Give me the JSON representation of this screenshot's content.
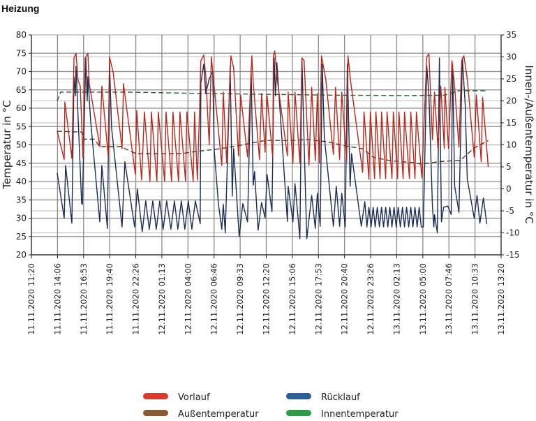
{
  "chart_data": {
    "type": "line",
    "title": "Heizung",
    "ylabel": "Temperatur in °C",
    "y2label": "Innen-/Außentemperatur in °C",
    "xunit": "hours since 11.11.2020 11:20",
    "xlim": [
      0,
      50
    ],
    "ylim": [
      20,
      80
    ],
    "y2lim": [
      -15,
      35
    ],
    "yticks": [
      "20",
      "25",
      "30",
      "35",
      "40",
      "45",
      "50",
      "55",
      "60",
      "65",
      "70",
      "75",
      "80"
    ],
    "y2ticks": [
      "-15",
      "-10",
      "-5",
      "0",
      "5",
      "10",
      "15",
      "20",
      "25",
      "30",
      "35"
    ],
    "xticks": [
      "11.11.2020 11:20",
      "11.11.2020 14:06",
      "11.11.2020 16:53",
      "11.11.2020 19:40",
      "11.11.2020 22:26",
      "12.11.2020 01:13",
      "12.11.2020 04:00",
      "12.11.2020 06:46",
      "12.11.2020 09:33",
      "12.11.2020 12:20",
      "12.11.2020 15:06",
      "12.11.2020 17:53",
      "12.11.2020 20:40",
      "12.11.2020 23:26",
      "13.11.2020 02:13",
      "13.11.2020 05:00",
      "13.11.2020 07:46",
      "13.11.2020 10:33",
      "13.11.2020 13:20"
    ],
    "grid": true,
    "legend_position": "bottom",
    "series": [
      {
        "name": "Vorlauf",
        "axis": "left",
        "color": "#b8291c",
        "legend_color": "#e0362b",
        "dashed": false,
        "points": [
          [
            2.75,
            53.7
          ],
          [
            3.49,
            46
          ],
          [
            3.56,
            61.7
          ],
          [
            4.31,
            46.3
          ],
          [
            4.53,
            73.7
          ],
          [
            4.75,
            75
          ],
          [
            4.97,
            67.6
          ],
          [
            5.2,
            66
          ],
          [
            5.49,
            46.3
          ],
          [
            5.72,
            73.7
          ],
          [
            6.01,
            75
          ],
          [
            6.16,
            66.7
          ],
          [
            7.28,
            49.5
          ],
          [
            7.5,
            66
          ],
          [
            8.17,
            47
          ],
          [
            8.31,
            74
          ],
          [
            8.69,
            69.9
          ],
          [
            9.65,
            49
          ],
          [
            9.8,
            66.7
          ],
          [
            11.06,
            42
          ],
          [
            11.21,
            59.4
          ],
          [
            11.73,
            40.4
          ],
          [
            12.03,
            59
          ],
          [
            12.62,
            40
          ],
          [
            12.77,
            59
          ],
          [
            13.36,
            40
          ],
          [
            13.51,
            59
          ],
          [
            14.18,
            40
          ],
          [
            14.33,
            59
          ],
          [
            14.92,
            40
          ],
          [
            15.07,
            59
          ],
          [
            15.66,
            40
          ],
          [
            15.81,
            59
          ],
          [
            16.41,
            40
          ],
          [
            16.55,
            59
          ],
          [
            17.22,
            40
          ],
          [
            17.37,
            59
          ],
          [
            17.67,
            40.4
          ],
          [
            17.89,
            58.7
          ],
          [
            18.04,
            73
          ],
          [
            18.34,
            74.5
          ],
          [
            18.56,
            69
          ],
          [
            18.93,
            50
          ],
          [
            19.15,
            74
          ],
          [
            20.27,
            44.4
          ],
          [
            20.42,
            64.4
          ],
          [
            20.79,
            45
          ],
          [
            21.23,
            74.3
          ],
          [
            21.53,
            71
          ],
          [
            22.05,
            47
          ],
          [
            22.27,
            63.6
          ],
          [
            23.01,
            46.7
          ],
          [
            23.46,
            74.3
          ],
          [
            23.61,
            67
          ],
          [
            24.28,
            46
          ],
          [
            24.5,
            64
          ],
          [
            24.87,
            48
          ],
          [
            25.09,
            63.4
          ],
          [
            25.69,
            46.5
          ],
          [
            25.76,
            74.3
          ],
          [
            25.91,
            75.6
          ],
          [
            26.13,
            68.6
          ],
          [
            27.25,
            47
          ],
          [
            27.33,
            64.4
          ],
          [
            27.84,
            45
          ],
          [
            28.06,
            64.4
          ],
          [
            28.58,
            45
          ],
          [
            28.8,
            73.7
          ],
          [
            29.03,
            73
          ],
          [
            29.55,
            44.4
          ],
          [
            29.84,
            65.7
          ],
          [
            30.22,
            45.7
          ],
          [
            30.44,
            64
          ],
          [
            30.66,
            45
          ],
          [
            30.88,
            74.3
          ],
          [
            31.33,
            68
          ],
          [
            32.15,
            47.4
          ],
          [
            32.37,
            65.7
          ],
          [
            32.81,
            46
          ],
          [
            33.04,
            64.4
          ],
          [
            33.56,
            45.4
          ],
          [
            33.7,
            74.3
          ],
          [
            34,
            67
          ],
          [
            35.26,
            42.5
          ],
          [
            35.41,
            59
          ],
          [
            35.93,
            40.6
          ],
          [
            36.08,
            59
          ],
          [
            36.53,
            40.8
          ],
          [
            36.67,
            59
          ],
          [
            37.12,
            40.8
          ],
          [
            37.27,
            59
          ],
          [
            37.71,
            40.8
          ],
          [
            37.86,
            59
          ],
          [
            38.38,
            40.8
          ],
          [
            38.53,
            59
          ],
          [
            38.98,
            40.8
          ],
          [
            39.12,
            59
          ],
          [
            39.57,
            40.8
          ],
          [
            39.72,
            59
          ],
          [
            40.24,
            40.8
          ],
          [
            40.39,
            59
          ],
          [
            40.83,
            40.8
          ],
          [
            40.98,
            59
          ],
          [
            41.57,
            41
          ],
          [
            42.09,
            74
          ],
          [
            42.32,
            74.8
          ],
          [
            42.69,
            51.4
          ],
          [
            42.91,
            64.4
          ],
          [
            43.28,
            49
          ],
          [
            43.58,
            66
          ],
          [
            43.95,
            49
          ],
          [
            44.02,
            65.7
          ],
          [
            44.4,
            49
          ],
          [
            44.77,
            73
          ],
          [
            45.06,
            65.7
          ],
          [
            45.51,
            49.4
          ],
          [
            45.8,
            73
          ],
          [
            46.03,
            74.3
          ],
          [
            46.4,
            68
          ],
          [
            47.14,
            46.7
          ],
          [
            47.37,
            63.6
          ],
          [
            47.88,
            45.4
          ],
          [
            48.03,
            63
          ],
          [
            48.63,
            44
          ]
        ]
      },
      {
        "name": "Rücklauf",
        "axis": "left",
        "color": "#1b2d52",
        "legend_color": "#2a5d99",
        "dashed": false,
        "points": [
          [
            2.75,
            42.3
          ],
          [
            3.49,
            30
          ],
          [
            3.64,
            44.4
          ],
          [
            4.31,
            28.6
          ],
          [
            4.53,
            68.6
          ],
          [
            4.68,
            63.4
          ],
          [
            4.75,
            71.4
          ],
          [
            5.35,
            34
          ],
          [
            5.42,
            33.8
          ],
          [
            5.79,
            73.7
          ],
          [
            5.94,
            62
          ],
          [
            6.01,
            68.6
          ],
          [
            6.31,
            56.5
          ],
          [
            7.28,
            29
          ],
          [
            7.5,
            44.4
          ],
          [
            8.09,
            27.2
          ],
          [
            8.31,
            72.4
          ],
          [
            8.54,
            54.6
          ],
          [
            9.65,
            27.6
          ],
          [
            9.95,
            45.4
          ],
          [
            10.99,
            27.6
          ],
          [
            11.28,
            38
          ],
          [
            11.8,
            26.3
          ],
          [
            12.17,
            34.7
          ],
          [
            12.55,
            27
          ],
          [
            12.92,
            34.7
          ],
          [
            13.29,
            27
          ],
          [
            13.66,
            34.7
          ],
          [
            14.03,
            27
          ],
          [
            14.4,
            34.7
          ],
          [
            14.85,
            27
          ],
          [
            15.22,
            34.7
          ],
          [
            15.59,
            27
          ],
          [
            15.96,
            34.7
          ],
          [
            16.33,
            27
          ],
          [
            16.7,
            34.7
          ],
          [
            17.08,
            27
          ],
          [
            17.45,
            34.7
          ],
          [
            17.97,
            28.5
          ],
          [
            18.04,
            67
          ],
          [
            18.34,
            72
          ],
          [
            18.56,
            64
          ],
          [
            18.93,
            68
          ],
          [
            19.3,
            70
          ],
          [
            19.45,
            49
          ],
          [
            19.9,
            34
          ],
          [
            20.27,
            27
          ],
          [
            20.42,
            33.8
          ],
          [
            20.64,
            26
          ],
          [
            21.16,
            71.4
          ],
          [
            21.38,
            36
          ],
          [
            21.53,
            49
          ],
          [
            22.12,
            25
          ],
          [
            22.5,
            34
          ],
          [
            23.01,
            29
          ],
          [
            23.39,
            71
          ],
          [
            23.61,
            39
          ],
          [
            23.76,
            42.7
          ],
          [
            24.13,
            26.7
          ],
          [
            24.5,
            34.3
          ],
          [
            24.87,
            30
          ],
          [
            25.09,
            41.9
          ],
          [
            25.61,
            31.8
          ],
          [
            25.84,
            73.7
          ],
          [
            25.98,
            63.4
          ],
          [
            26.13,
            72.4
          ],
          [
            27.25,
            29.1
          ],
          [
            27.33,
            38.7
          ],
          [
            27.84,
            29
          ],
          [
            28.06,
            39.4
          ],
          [
            28.58,
            24.4
          ],
          [
            28.8,
            73.7
          ],
          [
            29.1,
            43.8
          ],
          [
            29.32,
            24.4
          ],
          [
            29.84,
            36.2
          ],
          [
            30.22,
            27.2
          ],
          [
            30.44,
            36.8
          ],
          [
            30.74,
            27.8
          ],
          [
            30.96,
            72
          ],
          [
            31.18,
            52.2
          ],
          [
            32.15,
            27.8
          ],
          [
            32.45,
            38.7
          ],
          [
            32.81,
            27.8
          ],
          [
            33.04,
            36.8
          ],
          [
            33.41,
            27.6
          ],
          [
            33.63,
            72
          ],
          [
            33.93,
            38.7
          ],
          [
            34.08,
            47.6
          ],
          [
            35.12,
            27.8
          ],
          [
            35.49,
            34.5
          ],
          [
            35.71,
            27.6
          ],
          [
            35.93,
            33
          ],
          [
            36.16,
            27.6
          ],
          [
            36.38,
            33
          ],
          [
            36.6,
            27.6
          ],
          [
            36.82,
            33
          ],
          [
            37.05,
            27.6
          ],
          [
            37.27,
            33
          ],
          [
            37.49,
            27.6
          ],
          [
            37.71,
            33
          ],
          [
            37.94,
            27.6
          ],
          [
            38.16,
            33
          ],
          [
            38.38,
            27.6
          ],
          [
            38.6,
            33
          ],
          [
            38.83,
            27.6
          ],
          [
            39.05,
            33
          ],
          [
            39.27,
            27.6
          ],
          [
            39.5,
            33
          ],
          [
            39.72,
            27.6
          ],
          [
            39.94,
            33
          ],
          [
            40.16,
            27.6
          ],
          [
            40.39,
            33
          ],
          [
            40.61,
            27.6
          ],
          [
            40.83,
            33
          ],
          [
            41.06,
            27.6
          ],
          [
            41.28,
            33
          ],
          [
            41.5,
            27.6
          ],
          [
            41.72,
            27.6
          ],
          [
            42.09,
            71.6
          ],
          [
            42.32,
            63.4
          ],
          [
            42.69,
            33.3
          ],
          [
            42.84,
            27.6
          ],
          [
            42.91,
            31
          ],
          [
            43.21,
            26
          ],
          [
            43.43,
            73.7
          ],
          [
            43.65,
            29
          ],
          [
            43.88,
            33
          ],
          [
            44.32,
            33.3
          ],
          [
            44.69,
            31
          ],
          [
            44.84,
            72
          ],
          [
            45.06,
            38.7
          ],
          [
            45.51,
            31.6
          ],
          [
            45.88,
            73.7
          ],
          [
            46.18,
            60.8
          ],
          [
            46.4,
            40.7
          ],
          [
            47.14,
            30
          ],
          [
            47.44,
            36.2
          ],
          [
            47.74,
            28.6
          ],
          [
            48.11,
            35.5
          ],
          [
            48.48,
            28.4
          ]
        ]
      },
      {
        "name": "Außentemperatur",
        "axis": "right",
        "color": "#4a3a2c",
        "legend_color": "#8a5a35",
        "dashed": true,
        "points": [
          [
            2.75,
            13.1
          ],
          [
            5.42,
            12.9
          ],
          [
            5.57,
            11.3
          ],
          [
            6.68,
            11.3
          ],
          [
            7.28,
            9.6
          ],
          [
            9.65,
            9.6
          ],
          [
            10,
            9.1
          ],
          [
            11.14,
            8
          ],
          [
            15.96,
            8
          ],
          [
            17.45,
            8.5
          ],
          [
            19.67,
            9
          ],
          [
            21.53,
            9.6
          ],
          [
            23.39,
            10.4
          ],
          [
            24.87,
            11
          ],
          [
            27.84,
            11
          ],
          [
            29.32,
            11.2
          ],
          [
            31.55,
            10.7
          ],
          [
            33.04,
            9.9
          ],
          [
            35.26,
            9.1
          ],
          [
            36.38,
            7.2
          ],
          [
            38.23,
            6.4
          ],
          [
            40.46,
            6
          ],
          [
            41.57,
            5.6
          ],
          [
            43.43,
            6.2
          ],
          [
            45.66,
            6.5
          ],
          [
            47.14,
            9.3
          ],
          [
            48.63,
            11
          ]
        ]
      },
      {
        "name": "Innentemperatur",
        "axis": "right",
        "color": "#2f5e3c",
        "legend_color": "#2e9a4a",
        "dashed": true,
        "points": [
          [
            2.75,
            20
          ],
          [
            3.1,
            22
          ],
          [
            10,
            22
          ],
          [
            18,
            21.7
          ],
          [
            25,
            21.5
          ],
          [
            32,
            21.3
          ],
          [
            40,
            21.2
          ],
          [
            44,
            21.3
          ],
          [
            45.5,
            22.3
          ],
          [
            48.5,
            22.3
          ]
        ]
      }
    ]
  }
}
